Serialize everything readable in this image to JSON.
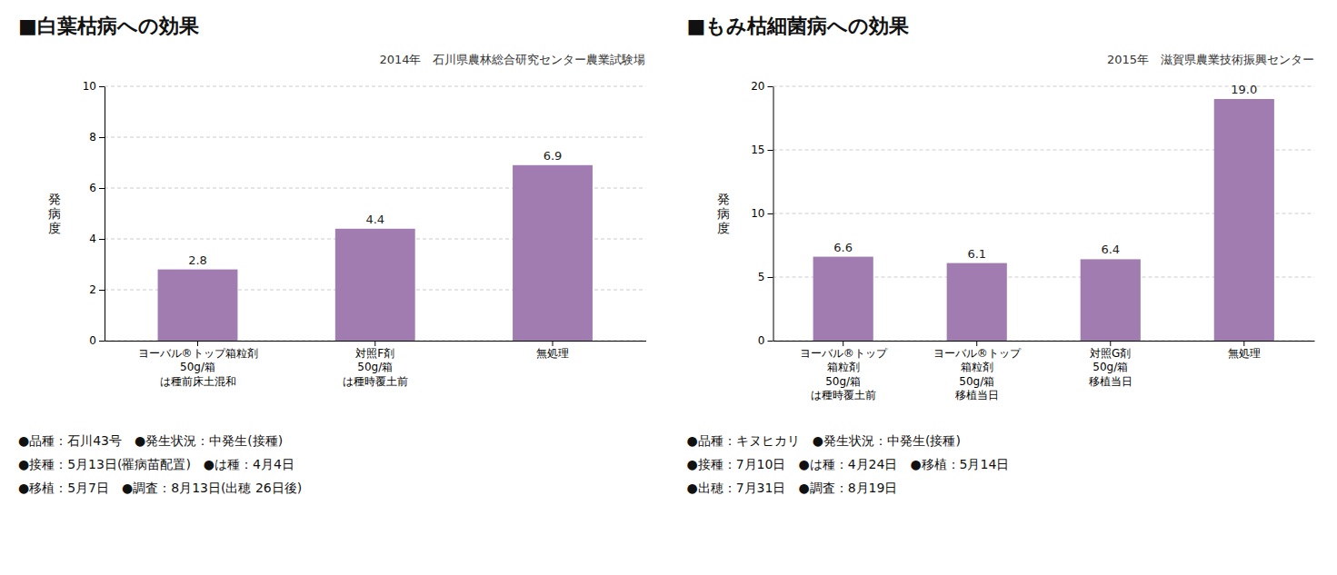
{
  "chart_data": [
    {
      "type": "bar",
      "title": "■白葉枯病への効果",
      "subtitle": "2014年　石川県農林総合研究センター農業試験場",
      "ylabel": "発\n病\n度",
      "categories": [
        "ヨーバル®トップ箱粒剤\n50g/箱\nは種前床土混和",
        "対照F剤\n50g/箱\nは種時覆土前",
        "無処理"
      ],
      "values": [
        2.8,
        4.4,
        6.9
      ],
      "color": "#a07cb0",
      "ylim": [
        0,
        10
      ],
      "yticks": [
        0,
        2,
        4,
        6,
        8,
        10
      ],
      "grid": true,
      "data_labels": true,
      "annotations": [
        "●品種：石川43号　●発生状況：中発生(接種)",
        "●接種：5月13日(罹病苗配置)　●は種：4月4日",
        "●移植：5月7日　●調査：8月13日(出穂 26日後)"
      ]
    },
    {
      "type": "bar",
      "title": "■もみ枯細菌病への効果",
      "subtitle": "2015年　滋賀県農業技術振興センター",
      "ylabel": "発\n病\n度",
      "categories": [
        "ヨーバル®トップ\n箱粒剤\n50g/箱\nは種時覆土前",
        "ヨーバル®トップ\n箱粒剤\n50g/箱\n移植当日",
        "対照G剤\n50g/箱\n移植当日",
        "無処理"
      ],
      "values": [
        6.6,
        6.1,
        6.4,
        19.0
      ],
      "value_labels": [
        "6.6",
        "6.1",
        "6.4",
        "19.0"
      ],
      "color": "#a07cb0",
      "ylim": [
        0,
        20
      ],
      "yticks": [
        0,
        5,
        10,
        15,
        20
      ],
      "grid": true,
      "data_labels": true,
      "annotations": [
        "●品種：キヌヒカリ　●発生状況：中発生(接種)",
        "●接種：7月10日　●は種：4月24日　●移植：5月14日",
        "●出穂：7月31日　●調査：8月19日"
      ]
    }
  ]
}
